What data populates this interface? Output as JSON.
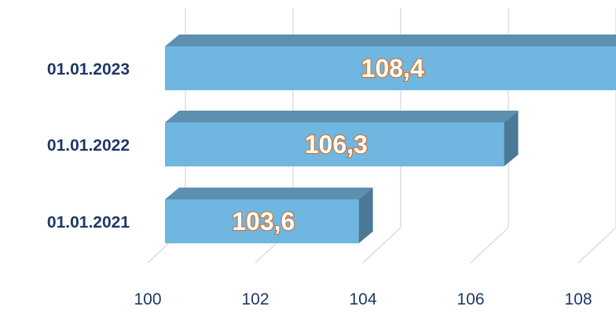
{
  "chart_data": {
    "type": "bar",
    "orientation": "horizontal",
    "style": "3d",
    "categories": [
      "01.01.2023",
      "01.01.2022",
      "01.01.2021"
    ],
    "values": [
      108.4,
      106.3,
      103.6
    ],
    "value_labels": [
      "108,4",
      "106,3",
      "103,6"
    ],
    "x_ticks": [
      100,
      102,
      104,
      106,
      108
    ],
    "x_tick_labels": [
      "100",
      "102",
      "104",
      "106",
      "108"
    ],
    "xlim": [
      100,
      108.4
    ],
    "grid": true,
    "legend": "none",
    "colors": {
      "bar_front": "#6fb6e0",
      "bar_top": "#5d8fb0",
      "bar_side": "#4a7a98",
      "category_text": "#1f3864",
      "label_fill": "#ffffff",
      "label_stroke": "#d9701e",
      "grid": "#d9d9d9"
    }
  }
}
